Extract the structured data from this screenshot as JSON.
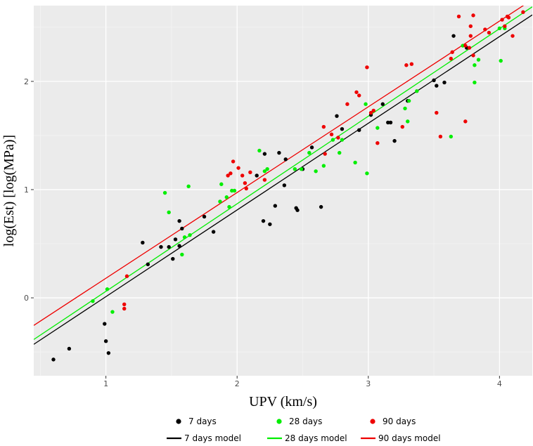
{
  "chart_data": {
    "type": "scatter",
    "xlabel": "UPV (km/s)",
    "ylabel": "log(Est) [log(MPa)]",
    "xlim": [
      0.45,
      4.25
    ],
    "ylim": [
      -0.72,
      2.7
    ],
    "x_ticks": [
      1,
      2,
      3,
      4
    ],
    "y_ticks": [
      0,
      1,
      2
    ],
    "grid": true,
    "legend_position": "bottom",
    "colors": {
      "7 days": "#000000",
      "28 days": "#00ee00",
      "90 days": "#ee0000"
    },
    "series": [
      {
        "name": "7 days",
        "color": "#000000",
        "points": [
          [
            0.6,
            -0.57
          ],
          [
            0.72,
            -0.47
          ],
          [
            0.99,
            -0.24
          ],
          [
            1.0,
            -0.4
          ],
          [
            1.02,
            -0.51
          ],
          [
            1.28,
            0.51
          ],
          [
            1.32,
            0.31
          ],
          [
            1.42,
            0.47
          ],
          [
            1.48,
            0.47
          ],
          [
            1.51,
            0.36
          ],
          [
            1.53,
            0.54
          ],
          [
            1.56,
            0.48
          ],
          [
            1.56,
            0.71
          ],
          [
            1.58,
            0.64
          ],
          [
            1.75,
            0.75
          ],
          [
            1.82,
            0.61
          ],
          [
            2.15,
            1.13
          ],
          [
            2.2,
            0.71
          ],
          [
            2.21,
            1.33
          ],
          [
            2.25,
            0.68
          ],
          [
            2.29,
            0.85
          ],
          [
            2.32,
            1.34
          ],
          [
            2.36,
            1.04
          ],
          [
            2.37,
            1.28
          ],
          [
            2.45,
            0.83
          ],
          [
            2.46,
            0.81
          ],
          [
            2.5,
            1.19
          ],
          [
            2.57,
            1.39
          ],
          [
            2.64,
            0.84
          ],
          [
            2.76,
            1.68
          ],
          [
            2.8,
            1.56
          ],
          [
            2.93,
            1.55
          ],
          [
            3.02,
            1.69
          ],
          [
            3.11,
            1.79
          ],
          [
            3.15,
            1.62
          ],
          [
            3.17,
            1.62
          ],
          [
            3.2,
            1.45
          ],
          [
            3.3,
            1.82
          ],
          [
            3.5,
            2.01
          ],
          [
            3.52,
            1.96
          ],
          [
            3.58,
            1.99
          ],
          [
            3.65,
            2.42
          ],
          [
            3.75,
            2.31
          ]
        ]
      },
      {
        "name": "28 days",
        "color": "#00ee00",
        "points": [
          [
            0.9,
            -0.03
          ],
          [
            1.01,
            0.08
          ],
          [
            1.05,
            -0.13
          ],
          [
            1.45,
            0.97
          ],
          [
            1.48,
            0.79
          ],
          [
            1.58,
            0.4
          ],
          [
            1.6,
            0.56
          ],
          [
            1.63,
            1.03
          ],
          [
            1.64,
            0.58
          ],
          [
            1.87,
            0.89
          ],
          [
            1.88,
            1.05
          ],
          [
            1.92,
            0.93
          ],
          [
            1.94,
            0.84
          ],
          [
            1.96,
            0.99
          ],
          [
            1.98,
            0.99
          ],
          [
            2.17,
            1.36
          ],
          [
            2.21,
            1.17
          ],
          [
            2.23,
            1.19
          ],
          [
            2.44,
            1.19
          ],
          [
            2.49,
            1.19
          ],
          [
            2.55,
            1.34
          ],
          [
            2.6,
            1.17
          ],
          [
            2.66,
            1.22
          ],
          [
            2.73,
            1.46
          ],
          [
            2.78,
            1.34
          ],
          [
            2.8,
            1.46
          ],
          [
            2.9,
            1.25
          ],
          [
            2.98,
            1.79
          ],
          [
            2.99,
            1.15
          ],
          [
            3.07,
            1.57
          ],
          [
            3.28,
            1.75
          ],
          [
            3.3,
            1.63
          ],
          [
            3.31,
            1.82
          ],
          [
            3.37,
            1.91
          ],
          [
            3.63,
            1.49
          ],
          [
            3.72,
            2.33
          ],
          [
            3.81,
            2.15
          ],
          [
            3.81,
            1.99
          ],
          [
            3.84,
            2.2
          ],
          [
            4.0,
            2.49
          ],
          [
            4.01,
            2.19
          ],
          [
            4.04,
            2.49
          ]
        ]
      },
      {
        "name": "90 days",
        "color": "#ee0000",
        "points": [
          [
            1.14,
            -0.06
          ],
          [
            1.14,
            -0.1
          ],
          [
            1.16,
            0.2
          ],
          [
            1.93,
            1.13
          ],
          [
            1.95,
            1.15
          ],
          [
            1.97,
            1.26
          ],
          [
            2.01,
            1.2
          ],
          [
            2.04,
            1.13
          ],
          [
            2.06,
            1.06
          ],
          [
            2.07,
            1.01
          ],
          [
            2.1,
            1.16
          ],
          [
            2.21,
            1.09
          ],
          [
            2.66,
            1.58
          ],
          [
            2.67,
            1.33
          ],
          [
            2.72,
            1.51
          ],
          [
            2.77,
            1.48
          ],
          [
            2.84,
            1.79
          ],
          [
            2.91,
            1.9
          ],
          [
            2.93,
            1.87
          ],
          [
            2.99,
            2.13
          ],
          [
            3.02,
            1.71
          ],
          [
            3.04,
            1.73
          ],
          [
            3.07,
            1.43
          ],
          [
            3.26,
            1.58
          ],
          [
            3.29,
            2.15
          ],
          [
            3.33,
            2.16
          ],
          [
            3.52,
            1.71
          ],
          [
            3.55,
            1.49
          ],
          [
            3.63,
            2.21
          ],
          [
            3.64,
            2.27
          ],
          [
            3.69,
            2.6
          ],
          [
            3.74,
            2.33
          ],
          [
            3.74,
            1.63
          ],
          [
            3.77,
            2.31
          ],
          [
            3.78,
            2.51
          ],
          [
            3.78,
            2.42
          ],
          [
            3.8,
            2.61
          ],
          [
            3.8,
            2.24
          ],
          [
            3.89,
            2.48
          ],
          [
            3.92,
            2.45
          ],
          [
            4.02,
            2.57
          ],
          [
            4.04,
            2.51
          ],
          [
            4.06,
            2.6
          ],
          [
            4.07,
            2.59
          ],
          [
            4.1,
            2.42
          ],
          [
            4.18,
            2.64
          ]
        ]
      }
    ],
    "models": [
      {
        "name": "7 days model",
        "color": "#000000",
        "slope": 0.801,
        "intercept": -0.79
      },
      {
        "name": "28 days model",
        "color": "#00ee00",
        "slope": 0.809,
        "intercept": -0.749
      },
      {
        "name": "90 days model",
        "color": "#ee0000",
        "slope": 0.792,
        "intercept": -0.611
      }
    ],
    "legend": {
      "points": [
        "7 days",
        "28 days",
        "90 days"
      ],
      "lines": [
        "7 days model",
        "28 days model",
        "90 days model"
      ]
    }
  }
}
